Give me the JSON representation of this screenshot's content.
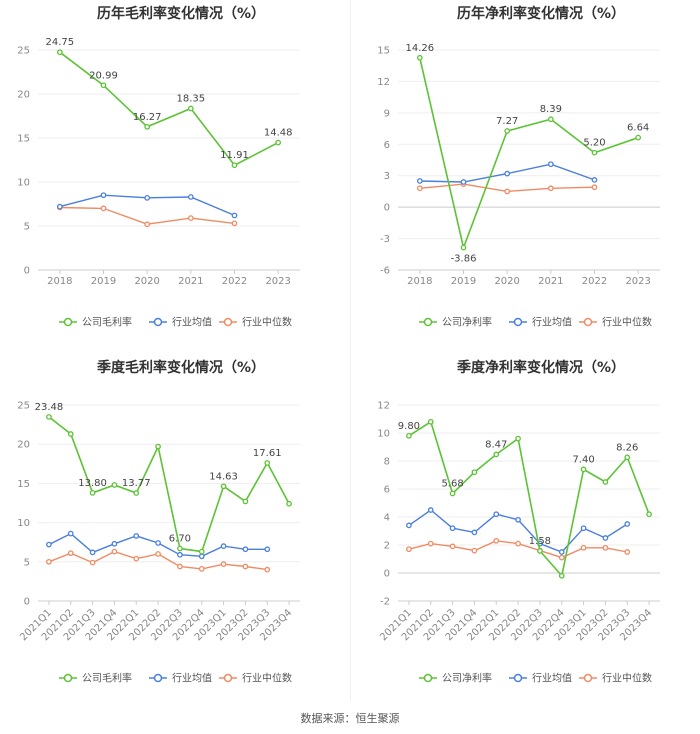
{
  "chart_data": [
    {
      "type": "line",
      "title": "历年毛利率变化情况（%）",
      "categories": [
        "2018",
        "2019",
        "2020",
        "2021",
        "2022",
        "2023"
      ],
      "ylim": [
        0,
        25
      ],
      "yticks": [
        0,
        5,
        10,
        15,
        20,
        25
      ],
      "ytick_labels": [
        "0",
        "5",
        "10",
        "15",
        "20",
        "25"
      ],
      "label_rotate": false,
      "series": [
        {
          "name": "公司毛利率",
          "color": "#5cc334",
          "values": [
            24.75,
            20.99,
            16.27,
            18.35,
            11.91,
            14.48
          ],
          "labels": [
            "24.75",
            "20.99",
            "16.27",
            "18.35",
            "11.91",
            "14.48"
          ]
        },
        {
          "name": "行业均值",
          "color": "#4a7ee0",
          "values": [
            7.2,
            8.5,
            8.2,
            8.3,
            6.2,
            null
          ]
        },
        {
          "name": "行业中位数",
          "color": "#f08a62",
          "values": [
            7.1,
            7.0,
            5.2,
            5.9,
            5.3,
            null
          ]
        }
      ]
    },
    {
      "type": "line",
      "title": "历年净利率变化情况（%）",
      "categories": [
        "2018",
        "2019",
        "2020",
        "2021",
        "2022",
        "2023"
      ],
      "ylim": [
        -6,
        15
      ],
      "yticks": [
        -6,
        -3,
        0,
        3,
        6,
        9,
        12,
        15
      ],
      "ytick_labels": [
        "-6",
        "-3",
        "0",
        "3",
        "6",
        "9",
        "12",
        "15"
      ],
      "label_rotate": false,
      "series": [
        {
          "name": "公司净利率",
          "color": "#5cc334",
          "values": [
            14.26,
            -3.86,
            7.27,
            8.39,
            5.2,
            6.64
          ],
          "labels": [
            "14.26",
            "-3.86",
            "7.27",
            "8.39",
            "5.20",
            "6.64"
          ]
        },
        {
          "name": "行业均值",
          "color": "#4a7ee0",
          "values": [
            2.5,
            2.4,
            3.2,
            4.1,
            2.6,
            null
          ]
        },
        {
          "name": "行业中位数",
          "color": "#f08a62",
          "values": [
            1.8,
            2.2,
            1.5,
            1.8,
            1.9,
            null
          ]
        }
      ]
    },
    {
      "type": "line",
      "title": "季度毛利率变化情况（%）",
      "categories": [
        "2021Q1",
        "2021Q2",
        "2021Q3",
        "2021Q4",
        "2022Q1",
        "2022Q2",
        "2022Q3",
        "2022Q4",
        "2023Q1",
        "2023Q2",
        "2023Q3",
        "2023Q4"
      ],
      "ylim": [
        0,
        25
      ],
      "yticks": [
        0,
        5,
        10,
        15,
        20,
        25
      ],
      "ytick_labels": [
        "0",
        "5",
        "10",
        "15",
        "20",
        "25"
      ],
      "label_rotate": true,
      "series": [
        {
          "name": "公司毛利率",
          "color": "#5cc334",
          "values": [
            23.48,
            21.3,
            13.8,
            14.8,
            13.77,
            19.7,
            6.7,
            6.3,
            14.63,
            12.7,
            17.61,
            12.4
          ],
          "labels": [
            "23.48",
            "",
            "13.80",
            "",
            "13.77",
            "",
            "6.70",
            "",
            "14.63",
            "",
            "17.61",
            ""
          ]
        },
        {
          "name": "行业均值",
          "color": "#4a7ee0",
          "values": [
            7.2,
            8.6,
            6.2,
            7.3,
            8.3,
            7.4,
            5.9,
            5.7,
            7.0,
            6.6,
            6.6,
            null
          ]
        },
        {
          "name": "行业中位数",
          "color": "#f08a62",
          "values": [
            5.0,
            6.1,
            4.9,
            6.3,
            5.4,
            6.0,
            4.4,
            4.1,
            4.7,
            4.4,
            4.0,
            null
          ]
        }
      ]
    },
    {
      "type": "line",
      "title": "季度净利率变化情况（%）",
      "categories": [
        "2021Q1",
        "2021Q2",
        "2021Q3",
        "2021Q4",
        "2022Q1",
        "2022Q2",
        "2022Q3",
        "2022Q4",
        "2023Q1",
        "2023Q2",
        "2023Q3",
        "2023Q4"
      ],
      "ylim": [
        -2,
        12
      ],
      "yticks": [
        -2,
        0,
        2,
        4,
        6,
        8,
        10,
        12
      ],
      "ytick_labels": [
        "-2",
        "0",
        "2",
        "4",
        "6",
        "8",
        "10",
        "12"
      ],
      "label_rotate": true,
      "series": [
        {
          "name": "公司净利率",
          "color": "#5cc334",
          "values": [
            9.8,
            10.8,
            5.68,
            7.2,
            8.47,
            9.6,
            1.58,
            -0.2,
            7.4,
            6.5,
            8.26,
            4.2
          ],
          "labels": [
            "9.80",
            "",
            "5.68",
            "",
            "8.47",
            "",
            "1.58",
            "",
            "7.40",
            "",
            "8.26",
            ""
          ]
        },
        {
          "name": "行业均值",
          "color": "#4a7ee0",
          "values": [
            3.4,
            4.5,
            3.2,
            2.9,
            4.2,
            3.8,
            2.1,
            1.5,
            3.2,
            2.5,
            3.5,
            null
          ]
        },
        {
          "name": "行业中位数",
          "color": "#f08a62",
          "values": [
            1.7,
            2.1,
            1.9,
            1.6,
            2.3,
            2.1,
            1.6,
            1.1,
            1.8,
            1.8,
            1.5,
            null
          ]
        }
      ]
    }
  ],
  "footer": "数据来源：恒生聚源"
}
